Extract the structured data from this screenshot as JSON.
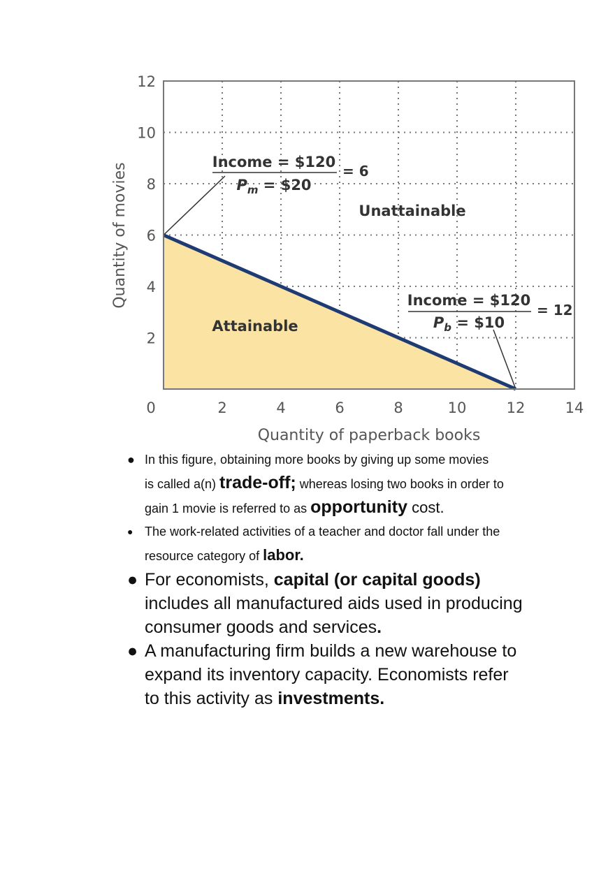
{
  "chart_data": {
    "type": "area",
    "xlabel": "Quantity of paperback books",
    "ylabel": "Quantity of movies",
    "xlim": [
      0,
      14
    ],
    "ylim": [
      0,
      12
    ],
    "x_ticks": [
      "0",
      "2",
      "4",
      "6",
      "8",
      "10",
      "12",
      "14"
    ],
    "y_ticks": [
      "2",
      "4",
      "6",
      "8",
      "10",
      "12"
    ],
    "grid": "dotted",
    "fill_color": "#fbe3a4",
    "line_color": "#1f3b73",
    "series": [
      {
        "x": [
          0,
          12
        ],
        "y": [
          6,
          0
        ]
      }
    ],
    "region_labels": {
      "attainable": "Attainable",
      "unattainable": "Unattainable"
    },
    "annotations": [
      {
        "numerator": "Income = $120",
        "denominator_sym": "P",
        "denominator_sub": "m",
        "denominator_val": " = $20",
        "result": "= 6",
        "points_to": [
          0,
          6
        ]
      },
      {
        "numerator": "Income = $120",
        "denominator_sym": "P",
        "denominator_sub": "b",
        "denominator_val": " = $10",
        "result": "= 12",
        "points_to": [
          12,
          0
        ]
      }
    ]
  },
  "notes": {
    "b1": {
      "t1": "In this figure, obtaining more books by giving up some movies",
      "t2": "is called a(n) ",
      "k1": "trade-off;",
      "t3": " whereas losing two books in order to",
      "t4": "gain 1 movie is referred to as ",
      "k2": "opportunity",
      "t5": " cost."
    },
    "b2": {
      "t1": "The work-related activities of a teacher and doctor fall under the",
      "t2": "resource category of ",
      "k1": "labor."
    },
    "b3": {
      "t1": "For economists, ",
      "k1": "capital (or capital goods)",
      "t2": "includes all manufactured aids used in producing",
      "t3": "consumer goods and services",
      "k2": "."
    },
    "b4": {
      "t1": "A manufacturing firm builds a new warehouse to",
      "t2": "expand its inventory capacity. Economists refer",
      "t3": "to this activity as ",
      "k1": "investments."
    }
  }
}
